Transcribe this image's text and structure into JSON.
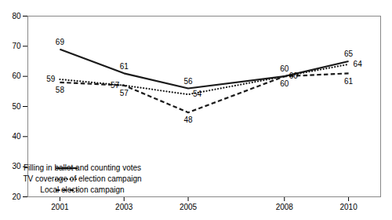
{
  "chart_data": {
    "type": "line",
    "x": [
      2001,
      2003,
      2005,
      2008,
      2010
    ],
    "xlim": [
      2000,
      2011
    ],
    "xticks": [
      2001,
      2003,
      2005,
      2008,
      2010
    ],
    "ylim": [
      20,
      80
    ],
    "yticks": [
      20,
      30,
      40,
      50,
      60,
      70,
      80
    ],
    "grid": false,
    "legend": "lower left",
    "data_labels": true,
    "series": [
      {
        "name": "Filling in ballot and counting votes",
        "color": "#1a1a1a",
        "line_style": "solid",
        "values": [
          69,
          61,
          56,
          60,
          65
        ]
      },
      {
        "name": "TV coverage of election campaign",
        "color": "#1a1a1a",
        "line_style": "dotted",
        "values": [
          59,
          57,
          54,
          60,
          64
        ]
      },
      {
        "name": "Local election campaign",
        "color": "#1a1a1a",
        "line_style": "dashed",
        "values": [
          58,
          57,
          48,
          60,
          61
        ]
      }
    ]
  }
}
